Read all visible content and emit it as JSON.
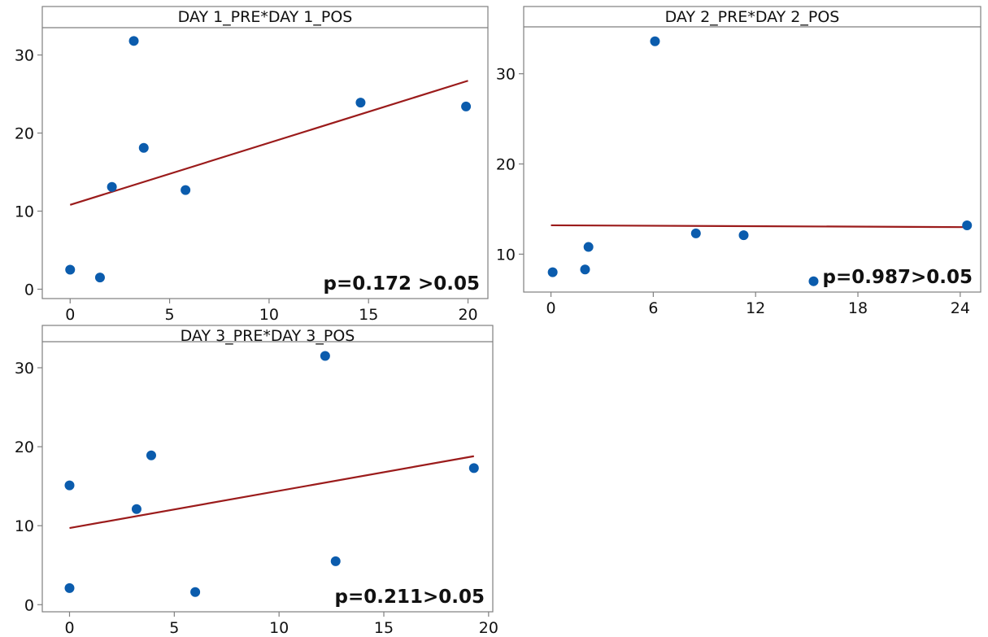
{
  "colors": {
    "point": "#0b5cad",
    "fit_line": "#9b1b1b",
    "frame": "#7f7f7f",
    "title_text": "#111111",
    "tick_text": "#111111",
    "background": "#ffffff"
  },
  "chart_data": [
    {
      "type": "scatter",
      "title": "DAY 1_PRE*DAY 1_POS",
      "annotation": "p=0.172 >0.05",
      "annotation_position": "bottom-right",
      "xlim": [
        -1.4,
        21
      ],
      "ylim": [
        -1.2,
        33.5
      ],
      "x_ticks": [
        0,
        5,
        10,
        15,
        20
      ],
      "y_ticks": [
        0,
        10,
        20,
        30
      ],
      "grid": false,
      "series": [
        {
          "points": [
            [
              0,
              2.5
            ],
            [
              1.5,
              1.5
            ],
            [
              2.1,
              13.1
            ],
            [
              3.2,
              31.8
            ],
            [
              3.7,
              18.1
            ],
            [
              5.8,
              12.7
            ],
            [
              14.6,
              23.9
            ],
            [
              19.9,
              23.4
            ]
          ]
        }
      ],
      "fit_line": [
        [
          0,
          10.8
        ],
        [
          20,
          26.7
        ]
      ]
    },
    {
      "type": "scatter",
      "title": "DAY 2_PRE*DAY 2_POS",
      "annotation": "p=0.987>0.05",
      "annotation_position": "bottom-right",
      "xlim": [
        -1.6,
        25.2
      ],
      "ylim": [
        5.8,
        35.2
      ],
      "x_ticks": [
        0,
        6,
        12,
        18,
        24
      ],
      "y_ticks": [
        10,
        20,
        30
      ],
      "grid": false,
      "series": [
        {
          "points": [
            [
              0.1,
              8.0
            ],
            [
              2.0,
              8.3
            ],
            [
              2.2,
              10.8
            ],
            [
              6.1,
              33.6
            ],
            [
              8.5,
              12.3
            ],
            [
              11.3,
              12.1
            ],
            [
              15.4,
              7.0
            ],
            [
              24.4,
              13.2
            ]
          ]
        }
      ],
      "fit_line": [
        [
          0,
          13.2
        ],
        [
          24.4,
          13.0
        ]
      ]
    },
    {
      "type": "scatter",
      "title": "DAY 3_PRE*DAY 3_POS",
      "annotation": "p=0.211>0.05",
      "annotation_position": "bottom-right",
      "xlim": [
        -1.3,
        20.2
      ],
      "ylim": [
        -0.9,
        33.3
      ],
      "x_ticks": [
        0,
        5,
        10,
        15,
        20
      ],
      "y_ticks": [
        0,
        10,
        20,
        30
      ],
      "grid": false,
      "series": [
        {
          "points": [
            [
              0,
              2.1
            ],
            [
              0,
              15.1
            ],
            [
              3.2,
              12.1
            ],
            [
              3.9,
              18.9
            ],
            [
              6.0,
              1.6
            ],
            [
              12.2,
              31.5
            ],
            [
              12.7,
              5.5
            ],
            [
              19.3,
              17.3
            ]
          ]
        }
      ],
      "fit_line": [
        [
          0,
          9.7
        ],
        [
          19.3,
          18.8
        ]
      ]
    }
  ]
}
